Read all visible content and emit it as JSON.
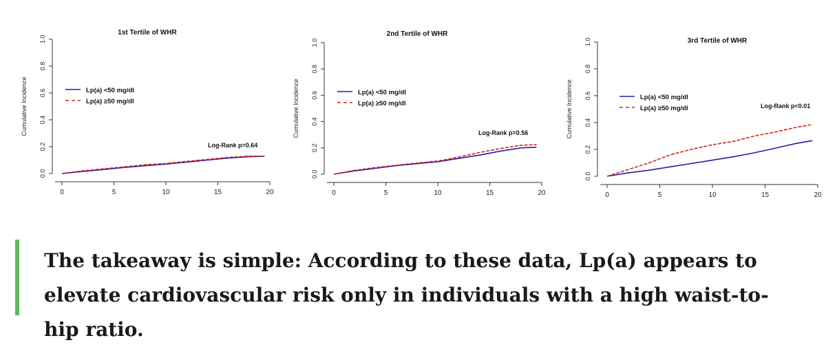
{
  "chart_data": [
    {
      "type": "line",
      "title": "1st Tertile of WHR",
      "ylabel": "Cumulative Incidence",
      "xlabel": "",
      "xlim": [
        0,
        20
      ],
      "ylim": [
        0,
        1.0
      ],
      "xticks": [
        0,
        5,
        10,
        15,
        20
      ],
      "yticks": [
        0.0,
        0.2,
        0.4,
        0.6,
        0.8,
        1.0
      ],
      "legend_position": "left",
      "annotation": "Log-Rank p=0.64",
      "series": [
        {
          "name": "Lp(a) <50 mg/dl",
          "color": "#1f1fa8",
          "style": "solid",
          "x": [
            0,
            2,
            4,
            6,
            8,
            10,
            12,
            14,
            16,
            18,
            19.5
          ],
          "y": [
            0.0,
            0.015,
            0.03,
            0.045,
            0.058,
            0.07,
            0.085,
            0.1,
            0.115,
            0.125,
            0.128
          ]
        },
        {
          "name": "Lp(a) ≥50 mg/dl",
          "color": "#d42020",
          "style": "dashed",
          "x": [
            0,
            2,
            4,
            6,
            8,
            10,
            12,
            14,
            16,
            18,
            19.5
          ],
          "y": [
            0.0,
            0.02,
            0.035,
            0.05,
            0.065,
            0.075,
            0.09,
            0.105,
            0.12,
            0.13,
            0.128
          ]
        }
      ]
    },
    {
      "type": "line",
      "title": "2nd Tertile of WHR",
      "ylabel": "Cumulative Incidence",
      "xlabel": "",
      "xlim": [
        0,
        20
      ],
      "ylim": [
        0,
        1.0
      ],
      "xticks": [
        0,
        5,
        10,
        15,
        20
      ],
      "yticks": [
        0.0,
        0.2,
        0.4,
        0.6,
        0.8,
        1.0
      ],
      "legend_position": "left",
      "annotation": "Log-Rank p=0.56",
      "series": [
        {
          "name": "Lp(a) <50 mg/dl",
          "color": "#1f1fa8",
          "style": "solid",
          "x": [
            0,
            2,
            4,
            6,
            8,
            10,
            12,
            14,
            16,
            18,
            19.5
          ],
          "y": [
            0.0,
            0.025,
            0.045,
            0.065,
            0.08,
            0.095,
            0.12,
            0.145,
            0.175,
            0.2,
            0.205
          ]
        },
        {
          "name": "Lp(a) ≥50 mg/dl",
          "color": "#d42020",
          "style": "dashed",
          "x": [
            0,
            2,
            4,
            6,
            8,
            10,
            12,
            14,
            16,
            18,
            19.5
          ],
          "y": [
            0.0,
            0.03,
            0.05,
            0.068,
            0.085,
            0.1,
            0.13,
            0.165,
            0.195,
            0.22,
            0.225
          ]
        }
      ]
    },
    {
      "type": "line",
      "title": "3rd Tertile of WHR",
      "ylabel": "Cumulative Incidence",
      "xlabel": "",
      "xlim": [
        0,
        20
      ],
      "ylim": [
        0,
        1.0
      ],
      "xticks": [
        0,
        5,
        10,
        15,
        20
      ],
      "yticks": [
        0.0,
        0.2,
        0.4,
        0.6,
        0.8,
        1.0
      ],
      "legend_position": "top-left",
      "annotation": "Log-Rank p<0.01",
      "series": [
        {
          "name": "Lp(a) <50 mg/dl",
          "color": "#1f1fa8",
          "style": "solid",
          "x": [
            0,
            2,
            4,
            6,
            8,
            10,
            12,
            14,
            16,
            18,
            19.5
          ],
          "y": [
            0.0,
            0.025,
            0.045,
            0.07,
            0.095,
            0.12,
            0.145,
            0.175,
            0.21,
            0.245,
            0.265
          ]
        },
        {
          "name": "Lp(a) ≥50 mg/dl",
          "color": "#d42020",
          "style": "dashed",
          "x": [
            0,
            2,
            4,
            6,
            8,
            10,
            12,
            14,
            16,
            18,
            19.5
          ],
          "y": [
            0.0,
            0.05,
            0.1,
            0.16,
            0.2,
            0.235,
            0.26,
            0.3,
            0.33,
            0.365,
            0.385
          ]
        }
      ]
    }
  ],
  "quote": {
    "text": "The takeaway is simple: According to these data, Lp(a) appears to elevate cardiovascular risk only in individuals with a high waist-to-hip ratio.",
    "bar_color": "#5cb85c"
  }
}
